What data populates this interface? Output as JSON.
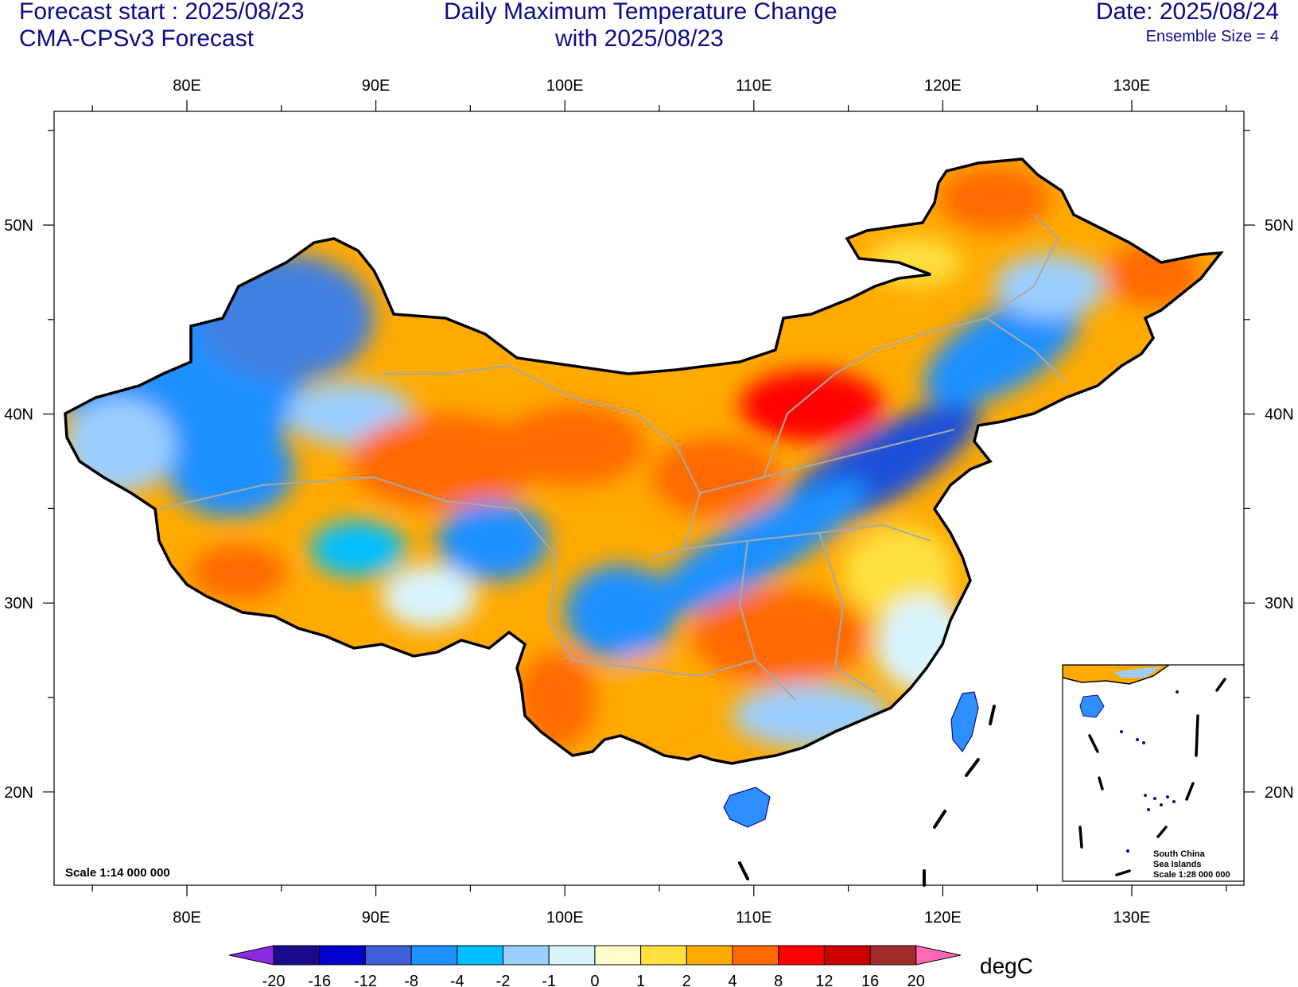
{
  "header": {
    "forecast_start": "Forecast start : 2025/08/23",
    "model": "CMA-CPSv3 Forecast",
    "title_line1": "Daily Maximum Temperature Change",
    "title_line2": "with 2025/08/23",
    "date": "Date: 2025/08/24",
    "ensemble": "Ensemble Size = 4"
  },
  "map": {
    "lon_ticks": [
      "80E",
      "90E",
      "100E",
      "110E",
      "120E",
      "130E"
    ],
    "lat_ticks": [
      "50N",
      "40N",
      "30N",
      "20N"
    ],
    "scale_text": "Scale 1:14 000 000",
    "inset": {
      "line1": "South China",
      "line2": "Sea Islands",
      "line3": "Scale 1:28 000 000"
    }
  },
  "colorbar": {
    "unit": "degC",
    "labels": [
      "-20",
      "-16",
      "-12",
      "-8",
      "-4",
      "-2",
      "-1",
      "0",
      "1",
      "2",
      "4",
      "8",
      "12",
      "16",
      "20"
    ],
    "colors": [
      "#1a0a8c",
      "#0000cc",
      "#3f5fd8",
      "#1e90ff",
      "#00bfff",
      "#9ccfff",
      "#d9f5ff",
      "#ffffcc",
      "#ffe140",
      "#ffaa00",
      "#ff6a00",
      "#ff0000",
      "#cc0000",
      "#a52a2a"
    ],
    "left_arrow_color": "#8a2be2",
    "right_arrow_color": "#ff69b4"
  },
  "palette": {
    "text": "#0c0c8a",
    "border": "#000000",
    "province": "#a9a9a9"
  }
}
